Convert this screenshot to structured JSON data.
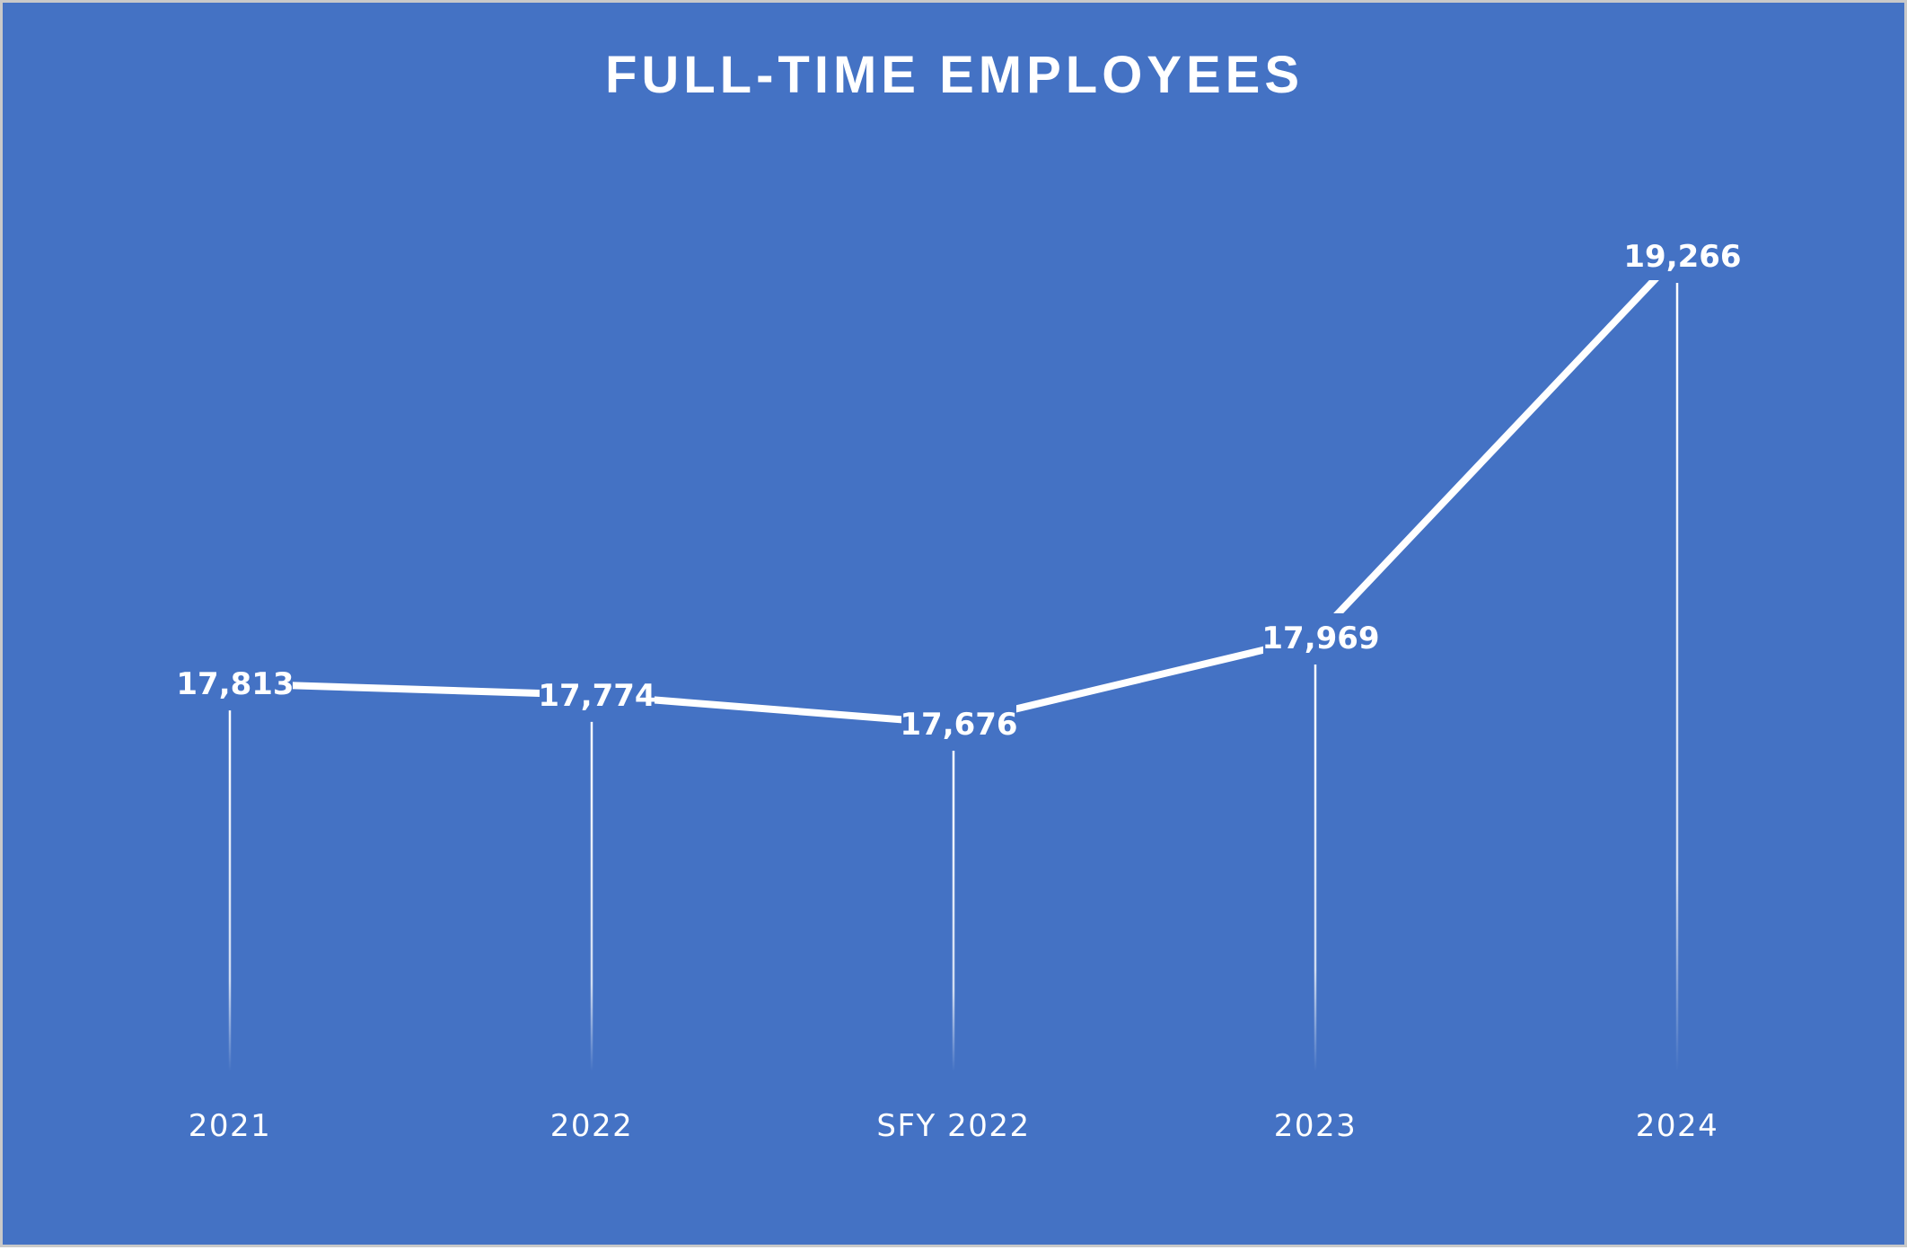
{
  "chart_data": {
    "type": "line",
    "title": "FULL-TIME EMPLOYEES",
    "categories": [
      "2021",
      "2022",
      "SFY 2022",
      "2023",
      "2024"
    ],
    "values": [
      17813,
      17774,
      17676,
      17969,
      19266
    ],
    "value_labels": [
      "17,813",
      "17,774",
      "17,676",
      "17,969",
      "19,266"
    ],
    "drop_lines": true,
    "grid": false,
    "legend": "none",
    "y_axis_visible": false,
    "colors": {
      "background": "#4472c4",
      "line": "#ffffff",
      "text": "#ffffff"
    }
  }
}
